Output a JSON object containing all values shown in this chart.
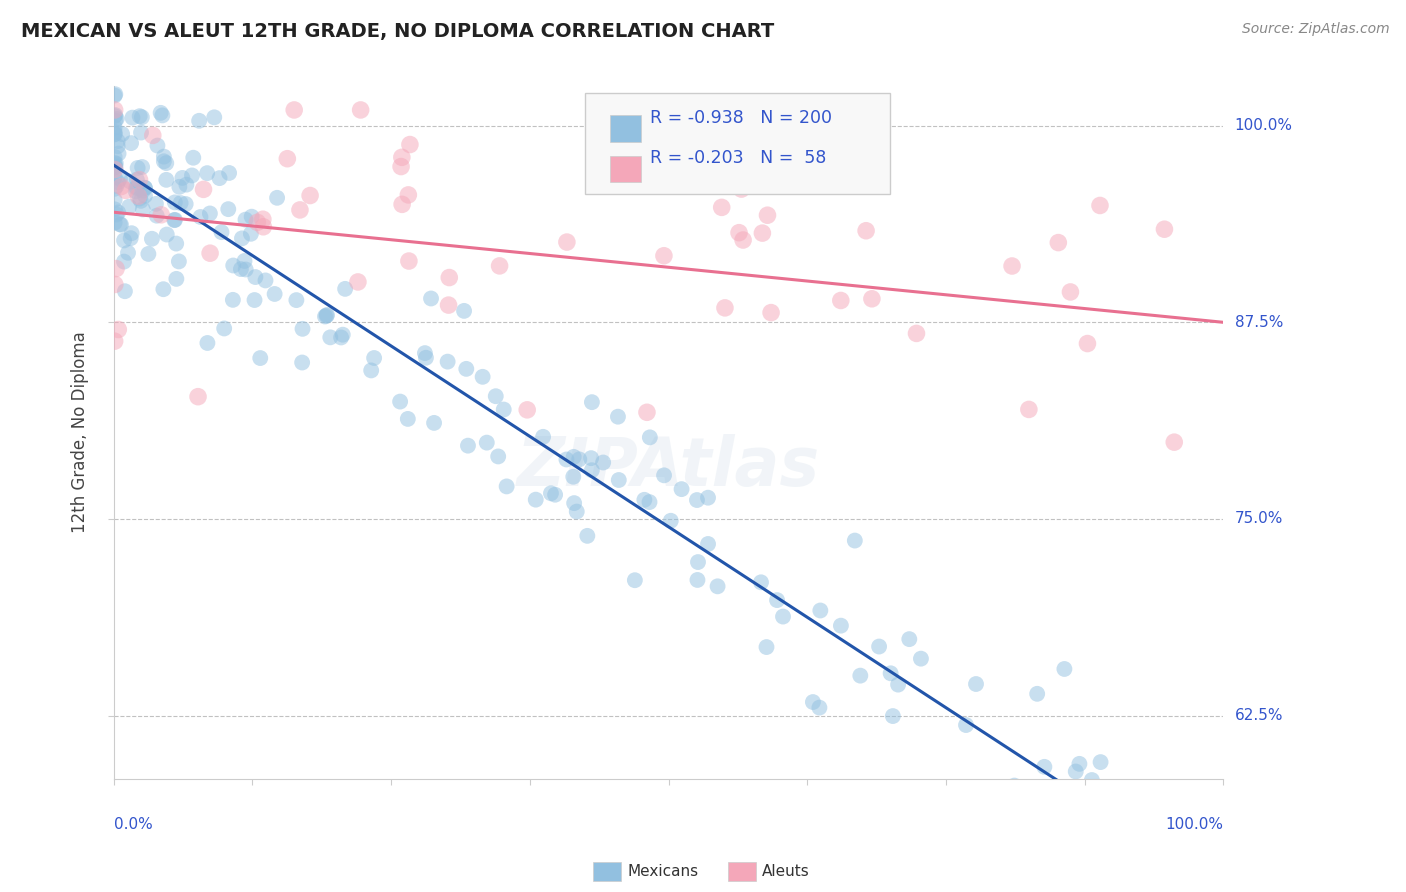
{
  "title": "MEXICAN VS ALEUT 12TH GRADE, NO DIPLOMA CORRELATION CHART",
  "source_text": "Source: ZipAtlas.com",
  "ylabel": "12th Grade, No Diploma",
  "ytick_labels": [
    "62.5%",
    "75.0%",
    "87.5%",
    "100.0%"
  ],
  "ytick_values": [
    0.625,
    0.75,
    0.875,
    1.0
  ],
  "blue_color": "#92c0e0",
  "pink_color": "#f4a7b9",
  "blue_line_color": "#2255aa",
  "pink_line_color": "#e87090",
  "legend_text_color": "#3355cc",
  "background_color": "#ffffff",
  "grid_color": "#bbbbbb",
  "title_color": "#222222",
  "source_color": "#888888",
  "blue_n": 200,
  "pink_n": 58,
  "blue_r": -0.938,
  "pink_r": -0.203,
  "blue_slope": -0.46,
  "blue_intercept": 0.975,
  "pink_slope": -0.07,
  "pink_intercept": 0.945,
  "blue_noise": 0.028,
  "pink_noise": 0.055,
  "scatter_size_blue": 130,
  "scatter_size_pink": 160,
  "scatter_alpha_blue": 0.5,
  "scatter_alpha_pink": 0.5
}
